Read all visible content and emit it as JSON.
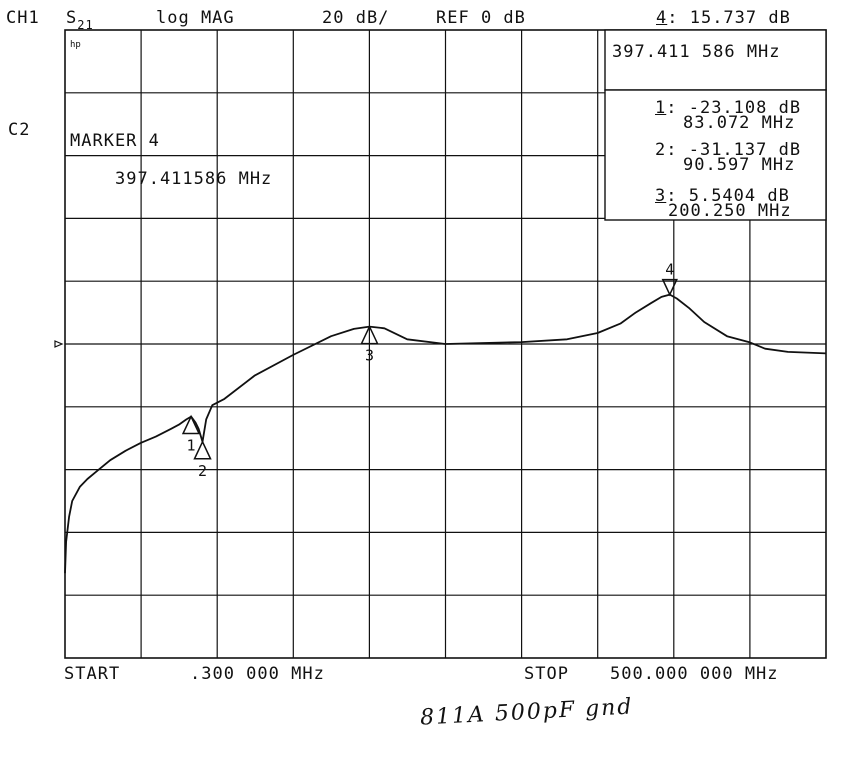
{
  "header": {
    "channel": "CH1",
    "param": "S",
    "param_sub": "21",
    "format": "log MAG",
    "scale": "20 dB/",
    "ref": "REF 0 dB",
    "active_marker_idx": "4",
    "active_marker_value": ": 15.737 dB"
  },
  "side": {
    "c2": "C2"
  },
  "marker_box": {
    "freq": "397.411 586 MHz"
  },
  "marker_list": [
    {
      "idx": "1",
      "db": ": -23.108 dB",
      "freq": "83.072 MHz"
    },
    {
      "idx": "2",
      "db": ": -31.137 dB",
      "freq": "90.597 MHz"
    },
    {
      "idx": "3",
      "db": ": 5.5404 dB",
      "freq": "200.250 MHz"
    }
  ],
  "hp_logo": "hp",
  "marker_annotation": {
    "title": "MARKER 4",
    "freq": "397.411586 MHz"
  },
  "footer": {
    "start_label": "START",
    "start_value": ".300 000 MHz",
    "stop_label": "STOP",
    "stop_value": "500.000 000 MHz"
  },
  "handwritten_note": "811A 500pF gnd",
  "colors": {
    "ink": "#111111",
    "paper": "#ffffff"
  },
  "chart_data": {
    "type": "line",
    "title": "",
    "xlabel": "",
    "ylabel": "",
    "x_unit": "MHz",
    "y_unit": "dB",
    "xlim": [
      0.3,
      500.0
    ],
    "ylim": [
      -100,
      100
    ],
    "ref_level_db": 0,
    "grid": true,
    "series": [
      {
        "x": [
          0.3,
          1,
          3,
          5,
          10,
          15,
          20,
          30,
          40,
          50,
          60,
          70,
          75,
          80,
          83.072,
          86,
          88,
          90.597,
          93,
          97,
          105,
          125,
          150,
          175,
          190,
          200.25,
          210,
          225,
          250,
          300,
          330,
          350,
          365,
          375,
          385,
          392,
          397.411586,
          402,
          410,
          420,
          435,
          450,
          460,
          475,
          500
        ],
        "values": [
          -73,
          -63,
          -55,
          -50,
          -45.5,
          -43,
          -41,
          -37,
          -34,
          -31.5,
          -29.5,
          -27,
          -25.7,
          -24,
          -23.108,
          -25,
          -27,
          -31.137,
          -24,
          -19.5,
          -17.5,
          -10,
          -3.5,
          2.5,
          4.8,
          5.54,
          5.0,
          1.5,
          0,
          0.6,
          1.5,
          3.5,
          6.5,
          10,
          13,
          15,
          15.737,
          14.5,
          11.5,
          7,
          2.5,
          0.5,
          -1.5,
          -2.5,
          -3
        ]
      }
    ],
    "markers": [
      {
        "id": "1",
        "x": 83.072,
        "y": -23.108
      },
      {
        "id": "2",
        "x": 90.597,
        "y": -31.137
      },
      {
        "id": "3",
        "x": 200.25,
        "y": 5.5404
      },
      {
        "id": "4",
        "x": 397.411586,
        "y": 15.737
      }
    ]
  }
}
